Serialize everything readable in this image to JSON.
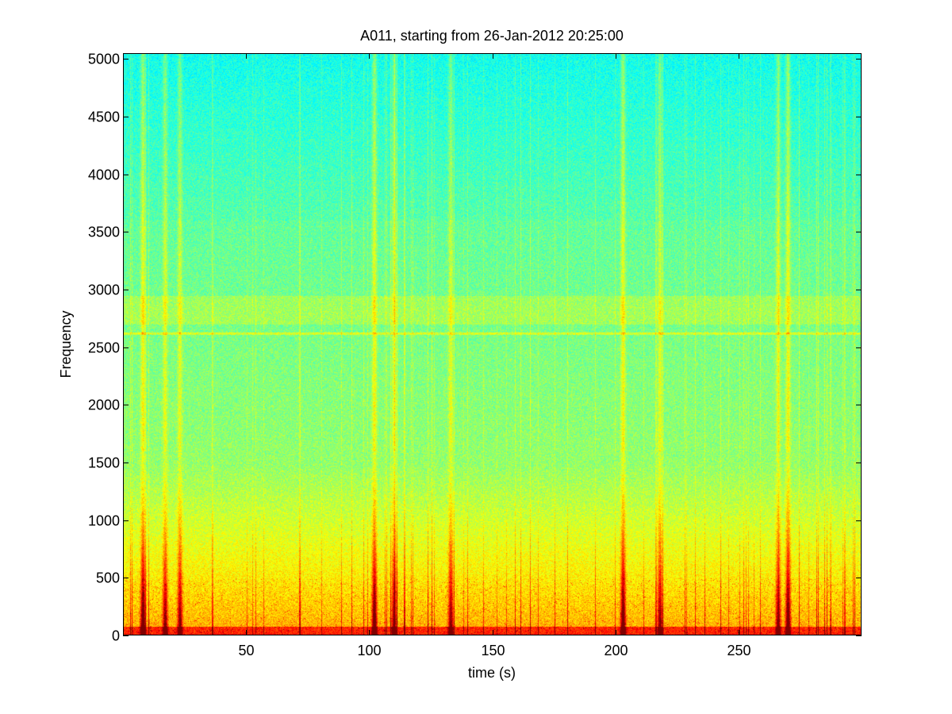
{
  "chart_data": {
    "type": "heatmap",
    "subtype": "spectrogram",
    "title": "A011, starting from 26-Jan-2012 20:25:00",
    "xlabel": "time (s)",
    "ylabel": "Frequency",
    "xlim": [
      0,
      300
    ],
    "ylim": [
      0,
      5050
    ],
    "x_ticks": [
      50,
      100,
      150,
      200,
      250
    ],
    "y_ticks": [
      0,
      500,
      1000,
      1500,
      2000,
      2500,
      3000,
      3500,
      4000,
      4500,
      5000
    ],
    "grid": false,
    "colormap": "jet",
    "colors": {
      "low": "#1ee8d4",
      "mid": "#7fe070",
      "high": "#f4f20a",
      "peak": "#d81a0a"
    },
    "features": {
      "tonal_line_hz": 2620,
      "energy_band_hz": [
        2700,
        2950
      ],
      "broadband_transients_s": [
        8,
        17,
        23,
        102,
        110,
        133,
        203,
        218,
        266,
        270
      ]
    }
  }
}
